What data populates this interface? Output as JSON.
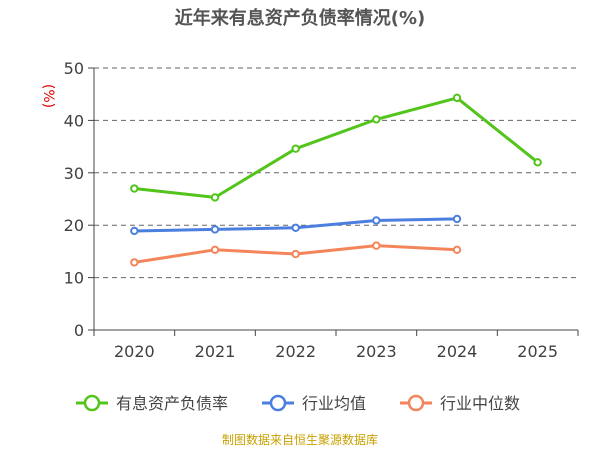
{
  "chart_data": {
    "type": "line",
    "title": "近年来有息资产负债率情况(%)",
    "ylabel": "(%)",
    "xlabel": "",
    "categories": [
      "2020",
      "2021",
      "2022",
      "2023",
      "2024",
      "2025"
    ],
    "ylim": [
      0,
      50
    ],
    "yticks": [
      "0",
      "10",
      "20",
      "30",
      "40",
      "50"
    ],
    "grid": true,
    "legend_position": "bottom",
    "series": [
      {
        "name": "有息资产负债率",
        "color": "#52c41a",
        "values": [
          27.0,
          25.3,
          34.6,
          40.2,
          44.3,
          32.0
        ]
      },
      {
        "name": "行业均值",
        "color": "#4a7fe0",
        "values": [
          18.9,
          19.2,
          19.5,
          20.9,
          21.2,
          null
        ]
      },
      {
        "name": "行业中位数",
        "color": "#f4855a",
        "values": [
          12.9,
          15.3,
          14.5,
          16.1,
          15.3,
          null
        ]
      }
    ]
  },
  "footer": "制图数据来自恒生聚源数据库"
}
